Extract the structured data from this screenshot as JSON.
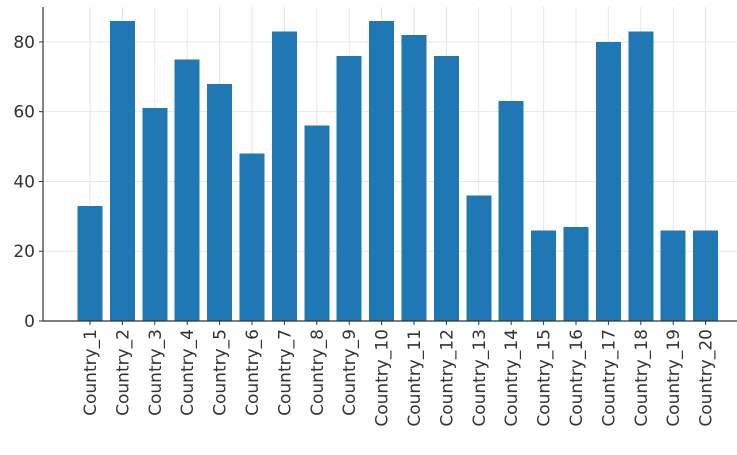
{
  "chart_data": {
    "type": "bar",
    "title": "",
    "xlabel": "",
    "ylabel": "",
    "categories": [
      "Country_1",
      "Country_2",
      "Country_3",
      "Country_4",
      "Country_5",
      "Country_6",
      "Country_7",
      "Country_8",
      "Country_9",
      "Country_10",
      "Country_11",
      "Country_12",
      "Country_13",
      "Country_14",
      "Country_15",
      "Country_16",
      "Country_17",
      "Country_18",
      "Country_19",
      "Country_20"
    ],
    "values": [
      33,
      86,
      61,
      75,
      68,
      48,
      83,
      56,
      76,
      86,
      82,
      76,
      36,
      63,
      26,
      27,
      80,
      83,
      26,
      26
    ],
    "ylim": [
      0,
      90
    ],
    "yticks": [
      0,
      20,
      40,
      60,
      80
    ],
    "grid": true,
    "bar_color": "#1f77b4"
  }
}
